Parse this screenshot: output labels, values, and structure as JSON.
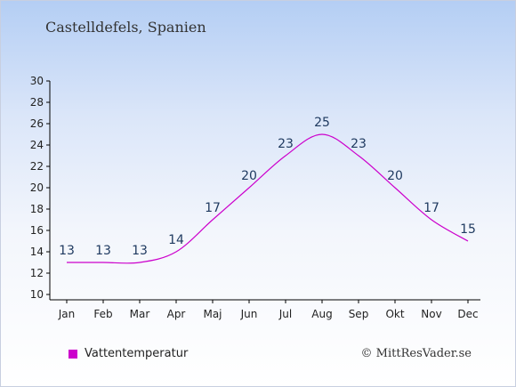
{
  "title": "Castelldefels, Spanien",
  "credit": "© MittResVader.se",
  "colors": {
    "series": "#cc00cc",
    "axis": "#000000",
    "label": "#1f3a60"
  },
  "chart_data": {
    "type": "line",
    "title": "Castelldefels, Spanien",
    "xlabel": "",
    "ylabel": "",
    "categories": [
      "Jan",
      "Feb",
      "Mar",
      "Apr",
      "Maj",
      "Jun",
      "Jul",
      "Aug",
      "Sep",
      "Okt",
      "Nov",
      "Dec"
    ],
    "series": [
      {
        "name": "Vattentemperatur",
        "values": [
          13,
          13,
          13,
          14,
          17,
          20,
          23,
          25,
          23,
          20,
          17,
          15
        ],
        "color": "#cc00cc"
      }
    ],
    "ylim": [
      10,
      30
    ],
    "yticks": [
      10,
      12,
      14,
      16,
      18,
      20,
      22,
      24,
      26,
      28,
      30
    ],
    "grid": false,
    "legend": "bottom-left"
  }
}
